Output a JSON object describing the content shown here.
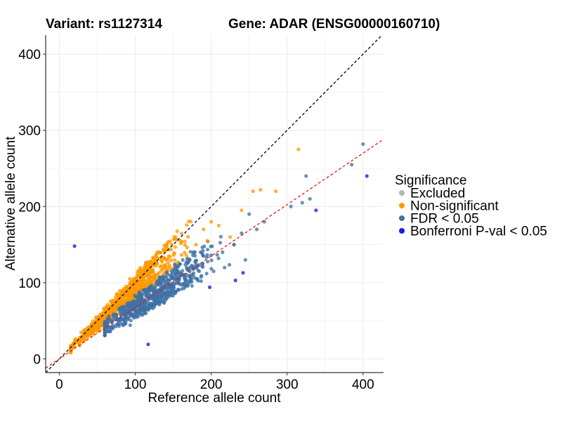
{
  "titles": {
    "variant": "Variant: rs1127314",
    "gene": "Gene: ADAR (ENSG00000160710)"
  },
  "chart_data": {
    "type": "scatter",
    "xlabel": "Reference allele count",
    "ylabel": "Alternative allele count",
    "xlim": [
      -18,
      427
    ],
    "ylim": [
      -18,
      425
    ],
    "xticks": [
      0,
      100,
      200,
      300,
      400
    ],
    "yticks": [
      0,
      100,
      200,
      300,
      400
    ],
    "grid": true,
    "legend": {
      "title": "Significance",
      "placement": "right",
      "entries": [
        {
          "label": "Excluded",
          "color": "#b3b3b3"
        },
        {
          "label": "Non-significant",
          "color": "#ff9900"
        },
        {
          "label": "FDR < 0.05",
          "color": "#3f72a6"
        },
        {
          "label": "Bonferroni P-val < 0.05",
          "color": "#1a1ae6"
        }
      ]
    },
    "reference_lines": [
      {
        "kind": "identity",
        "slope": 1,
        "intercept": 0,
        "color": "#000000",
        "style": "dashed"
      },
      {
        "kind": "fit",
        "slope": 0.675,
        "intercept": 0,
        "color": "#e41a1c",
        "style": "dashed"
      }
    ],
    "clusters": [
      {
        "series": "Non-significant",
        "approx_points": 900,
        "x_range": [
          15,
          180
        ],
        "ratio_range": [
          0.78,
          1.08
        ]
      },
      {
        "series": "FDR < 0.05",
        "approx_points": 700,
        "x_range": [
          60,
          230
        ],
        "ratio_range": [
          0.55,
          0.8
        ]
      }
    ],
    "series": [
      {
        "name": "Non-significant",
        "color": "#ff9900",
        "points": [
          [
            190,
            170
          ],
          [
            200,
            180
          ],
          [
            210,
            175
          ],
          [
            225,
            160
          ],
          [
            240,
            195
          ],
          [
            255,
            220
          ],
          [
            265,
            222
          ],
          [
            285,
            220
          ],
          [
            315,
            275
          ],
          [
            195,
            155
          ],
          [
            180,
            150
          ]
        ]
      },
      {
        "name": "FDR < 0.05",
        "color": "#3f72a6",
        "points": [
          [
            400,
            282
          ],
          [
            385,
            255
          ],
          [
            325,
            240
          ],
          [
            305,
            200
          ],
          [
            320,
            205
          ],
          [
            330,
            210
          ],
          [
            250,
            190
          ],
          [
            260,
            170
          ],
          [
            240,
            165
          ],
          [
            230,
            150
          ],
          [
            215,
            140
          ],
          [
            270,
            180
          ],
          [
            245,
            130
          ]
        ]
      },
      {
        "name": "Bonferroni P-val < 0.05",
        "color": "#1a1ae6",
        "points": [
          [
            20,
            148
          ],
          [
            117,
            19
          ],
          [
            198,
            94
          ],
          [
            232,
            103
          ],
          [
            242,
            113
          ],
          [
            338,
            195
          ],
          [
            405,
            240
          ]
        ]
      }
    ]
  }
}
